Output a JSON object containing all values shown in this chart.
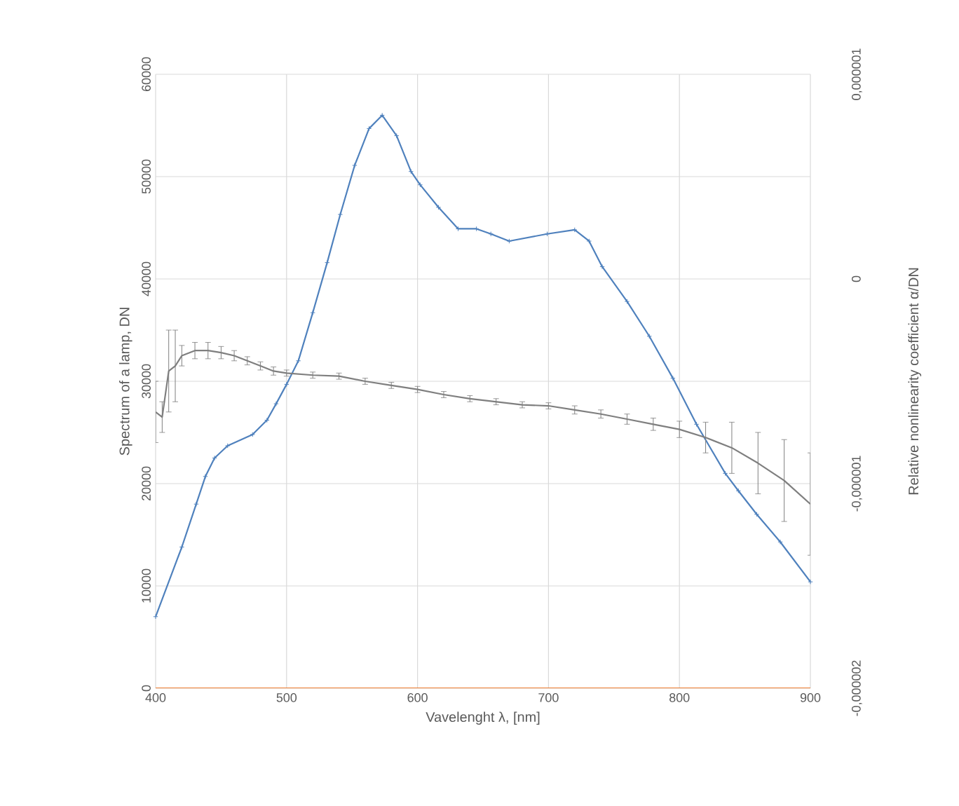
{
  "chart_data": {
    "type": "line",
    "xlabel": "Vavelenght λ, [nm]",
    "ylabel": "Spectrum of a lamp, DN",
    "y2label": "Relative nonlinearity coefficient α/DN",
    "xlim": [
      400,
      900
    ],
    "xticks": [
      400,
      500,
      600,
      700,
      800,
      900
    ],
    "ylim": [
      0,
      60000
    ],
    "yticks": [
      0,
      10000,
      20000,
      30000,
      40000,
      50000,
      60000
    ],
    "y2lim": [
      -2e-06,
      1e-06
    ],
    "y2ticks": [
      {
        "value": -2e-06,
        "label": "-0,000002"
      },
      {
        "value": -1e-06,
        "label": "-0,000001"
      },
      {
        "value": 0,
        "label": "0"
      },
      {
        "value": 1e-06,
        "label": "0,000001"
      }
    ],
    "grid": true,
    "series": [
      {
        "color": "#4f81bd",
        "marker": "cross",
        "x": [
          400,
          420,
          431,
          438,
          445,
          455,
          474,
          485,
          492,
          500,
          509,
          520,
          531,
          541,
          552,
          563,
          573,
          584,
          595,
          602,
          616,
          631,
          645,
          656,
          670,
          699,
          720,
          731,
          741,
          760,
          777,
          795,
          813,
          835,
          845,
          859,
          877,
          900
        ],
        "values": [
          7000,
          13800,
          18000,
          20700,
          22500,
          23700,
          24800,
          26200,
          27800,
          29700,
          32000,
          36700,
          41600,
          46300,
          51100,
          54700,
          56000,
          54000,
          50500,
          49200,
          47000,
          44900,
          44900,
          44400,
          43700,
          44400,
          44800,
          43700,
          41200,
          37800,
          34400,
          30300,
          25800,
          21000,
          19300,
          17000,
          14300,
          10400
        ]
      },
      {
        "color": "#7f7f7f",
        "axis": "y2",
        "x": [
          400,
          405,
          410,
          415,
          420,
          430,
          440,
          450,
          460,
          470,
          480,
          490,
          500,
          520,
          540,
          560,
          580,
          600,
          620,
          640,
          660,
          680,
          700,
          720,
          740,
          760,
          780,
          800,
          820,
          840,
          860,
          880,
          900
        ],
        "values": [
          -6.5e-07,
          -6.75e-07,
          -4.5e-07,
          -4.25e-07,
          -3.75e-07,
          -3.5e-07,
          -3.5e-07,
          -3.6e-07,
          -3.75e-07,
          -4e-07,
          -4.25e-07,
          -4.5e-07,
          -4.6e-07,
          -4.7e-07,
          -4.75e-07,
          -5e-07,
          -5.2e-07,
          -5.4e-07,
          -5.65e-07,
          -5.85e-07,
          -6e-07,
          -6.15e-07,
          -6.2e-07,
          -6.4e-07,
          -6.6e-07,
          -6.85e-07,
          -7.1e-07,
          -7.35e-07,
          -7.75e-07,
          -8.25e-07,
          -9e-07,
          -9.85e-07,
          -1.1e-06
        ],
        "errors": [
          1.5e-07,
          7.5e-08,
          2e-07,
          1.75e-07,
          5e-08,
          4e-08,
          4e-08,
          3e-08,
          2.5e-08,
          2e-08,
          2e-08,
          2e-08,
          1.5e-08,
          1.5e-08,
          1.5e-08,
          1.5e-08,
          1.5e-08,
          1.5e-08,
          1.5e-08,
          1.5e-08,
          1.5e-08,
          1.5e-08,
          1.5e-08,
          2e-08,
          2e-08,
          2.5e-08,
          3e-08,
          4e-08,
          7.5e-08,
          1.25e-07,
          1.5e-07,
          2e-07,
          2.5e-07
        ]
      },
      {
        "color": "#ed7d31",
        "x": [
          400,
          900
        ],
        "values": [
          0,
          0
        ]
      }
    ]
  }
}
